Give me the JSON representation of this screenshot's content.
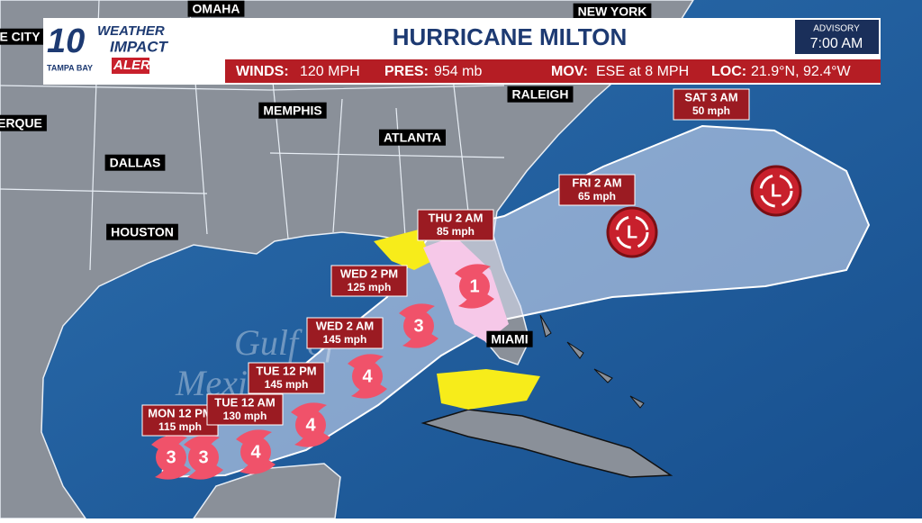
{
  "header": {
    "logo": {
      "number": "10",
      "line1": "WEATHER",
      "line2": "IMPACT",
      "line3": "ALERT",
      "station": "TAMPA BAY"
    },
    "title": "HURRICANE MILTON",
    "advisory": {
      "label": "ADVISORY",
      "time": "7:00 AM"
    }
  },
  "stats": [
    {
      "label": "WINDS:",
      "value": "120 MPH"
    },
    {
      "label": "PRES:",
      "value": "954 mb"
    },
    {
      "label": "MOV:",
      "value": "ESE at 8 MPH"
    },
    {
      "label": "LOC:",
      "value": "21.9°N, 92.4°W"
    }
  ],
  "cities": [
    "OMAHA",
    "NEW YORK",
    "E CITY",
    "RALEIGH",
    "MEMPHIS",
    "ERQUE",
    "ATLANTA",
    "DALLAS",
    "HOUSTON",
    "MIAMI"
  ],
  "water_label": [
    "Gulf of",
    "Mexico"
  ],
  "forecast_points": [
    {
      "time": "MON 12 PM",
      "wind": "115 mph"
    },
    {
      "time": "TUE 12 AM",
      "wind": "130 mph"
    },
    {
      "time": "TUE 12 PM",
      "wind": "145 mph"
    },
    {
      "time": "WED 2 AM",
      "wind": "145 mph"
    },
    {
      "time": "WED 2 PM",
      "wind": "125 mph"
    },
    {
      "time": "THU 2 AM",
      "wind": "85 mph"
    },
    {
      "time": "FRI 2 AM",
      "wind": "65 mph"
    },
    {
      "time": "SAT 3 AM",
      "wind": "50 mph"
    }
  ],
  "storm_icons": [
    "3",
    "3",
    "4",
    "4",
    "4",
    "3",
    "1",
    "L",
    "L"
  ]
}
